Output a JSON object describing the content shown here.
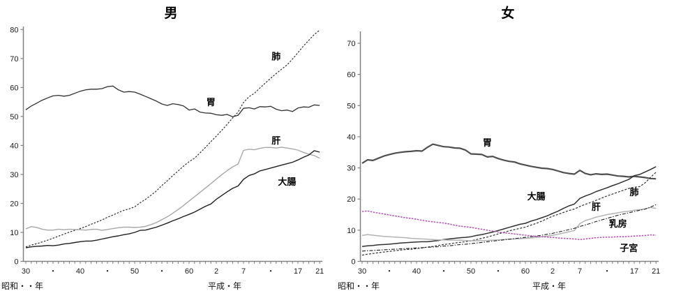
{
  "figure": {
    "background": "#ffffff",
    "description_visible_text_only": true
  },
  "chart_data": [
    {
      "type": "line",
      "title": "男",
      "ylim": [
        0,
        80
      ],
      "yticks": [
        0,
        10,
        20,
        30,
        40,
        50,
        60,
        70,
        80
      ],
      "grid": false,
      "legend": "inline-labels",
      "x": {
        "start_year": 1955,
        "end_year": 2009,
        "step": 1,
        "tick_labels": [
          {
            "label": "30",
            "year": 1955
          },
          {
            "label": "・",
            "year": 1960
          },
          {
            "label": "40",
            "year": 1965
          },
          {
            "label": "・",
            "year": 1970
          },
          {
            "label": "50",
            "year": 1975
          },
          {
            "label": "・",
            "year": 1980
          },
          {
            "label": "60",
            "year": 1985
          },
          {
            "label": "2",
            "year": 1990
          },
          {
            "label": "7",
            "year": 1995
          },
          {
            "label": "・",
            "year": 2000
          },
          {
            "label": "17",
            "year": 2005
          },
          {
            "label": "21",
            "year": 2009
          }
        ],
        "era_labels": [
          {
            "text": "昭和・・年",
            "position": "left"
          },
          {
            "text": "平成・年",
            "position": "center-right"
          }
        ]
      },
      "series": [
        {
          "name": "胃",
          "key": "stomach",
          "color": "#303030",
          "width": 1.3,
          "dash": "",
          "label_anchor": {
            "year": 1989,
            "value": 54.8
          },
          "values": [
            52.3,
            53.6,
            54.6,
            55.6,
            56.4,
            57.1,
            57.3,
            57.0,
            57.3,
            58.0,
            58.7,
            59.2,
            59.4,
            59.4,
            59.6,
            60.3,
            60.5,
            59.2,
            58.4,
            58.6,
            58.4,
            57.7,
            56.9,
            56.1,
            55.3,
            54.3,
            53.8,
            54.4,
            54.1,
            53.6,
            52.2,
            52.6,
            51.5,
            51.2,
            51.1,
            50.6,
            50.4,
            50.7,
            49.9,
            50.4,
            52.8,
            53.0,
            52.6,
            53.4,
            53.3,
            53.5,
            52.5,
            52.0,
            52.2,
            51.7,
            52.9,
            53.3,
            53.2,
            54.0,
            53.8
          ]
        },
        {
          "name": "肺",
          "key": "lung",
          "color": "#303030",
          "width": 1.2,
          "dash": "2.5,2",
          "label_anchor": {
            "year": 2001,
            "value": 70.5
          },
          "values": [
            5.0,
            5.6,
            6.1,
            6.7,
            7.3,
            8.0,
            8.7,
            9.4,
            10.1,
            10.7,
            11.3,
            12.0,
            12.8,
            13.5,
            14.3,
            15.2,
            16.0,
            16.8,
            17.6,
            18.1,
            18.8,
            20.2,
            21.4,
            22.8,
            24.3,
            26.2,
            27.8,
            29.6,
            31.2,
            32.9,
            34.4,
            35.6,
            37.4,
            39.3,
            41.3,
            43.2,
            45.2,
            47.3,
            49.5,
            51.5,
            54.8,
            56.8,
            58.0,
            59.8,
            61.5,
            63.2,
            64.8,
            66.3,
            67.8,
            69.8,
            72.0,
            74.3,
            76.3,
            78.3,
            79.8
          ]
        },
        {
          "name": "肝",
          "key": "liver",
          "color": "#a8a8a8",
          "width": 1.4,
          "dash": "",
          "label_anchor": {
            "year": 2001,
            "value": 41.6
          },
          "values": [
            11.2,
            12.0,
            11.7,
            11.1,
            10.8,
            10.8,
            11.1,
            10.9,
            11.1,
            11.0,
            10.9,
            10.8,
            11.0,
            11.1,
            10.7,
            11.0,
            11.3,
            11.6,
            11.8,
            11.8,
            11.7,
            11.8,
            12.1,
            12.7,
            13.4,
            14.4,
            15.4,
            16.6,
            17.9,
            19.3,
            20.8,
            22.3,
            23.8,
            25.3,
            26.8,
            28.4,
            29.9,
            31.3,
            32.6,
            33.6,
            38.3,
            38.7,
            38.5,
            39.0,
            39.3,
            39.3,
            39.1,
            39.4,
            39.1,
            38.8,
            38.4,
            37.6,
            37.0,
            36.5,
            35.6
          ]
        },
        {
          "name": "大腸",
          "key": "colon",
          "color": "#1f1f1f",
          "width": 1.4,
          "dash": "",
          "label_anchor": {
            "year": 2003,
            "value": 27.3
          },
          "values": [
            4.7,
            5.0,
            5.2,
            5.3,
            5.5,
            5.4,
            5.6,
            6.0,
            6.2,
            6.5,
            6.8,
            7.0,
            7.0,
            7.3,
            7.7,
            8.1,
            8.5,
            8.8,
            9.2,
            9.5,
            10.0,
            10.7,
            10.8,
            11.3,
            11.8,
            12.5,
            13.2,
            14.0,
            14.7,
            15.5,
            16.2,
            17.0,
            18.0,
            19.0,
            19.8,
            21.4,
            22.7,
            24.0,
            25.2,
            26.0,
            28.3,
            29.6,
            30.2,
            31.2,
            31.7,
            32.2,
            32.7,
            33.2,
            33.7,
            34.2,
            35.0,
            35.9,
            36.7,
            38.2,
            37.7
          ]
        }
      ]
    },
    {
      "type": "line",
      "title": "女",
      "ylim": [
        0,
        70
      ],
      "yticks": [
        0,
        10,
        20,
        30,
        40,
        50,
        60,
        70
      ],
      "grid": false,
      "legend": "inline-labels",
      "x": {
        "start_year": 1955,
        "end_year": 2009,
        "step": 1,
        "tick_labels": [
          {
            "label": "30",
            "year": 1955
          },
          {
            "label": "・",
            "year": 1960
          },
          {
            "label": "40",
            "year": 1965
          },
          {
            "label": "・",
            "year": 1970
          },
          {
            "label": "50",
            "year": 1975
          },
          {
            "label": "・",
            "year": 1980
          },
          {
            "label": "60",
            "year": 1985
          },
          {
            "label": "2",
            "year": 1990
          },
          {
            "label": "7",
            "year": 1995
          },
          {
            "label": "・",
            "year": 2000
          },
          {
            "label": "17",
            "year": 2005
          },
          {
            "label": "21",
            "year": 2009
          }
        ],
        "era_labels": [
          {
            "text": "昭和・・年",
            "position": "left"
          },
          {
            "text": "平成・年",
            "position": "center-right"
          }
        ]
      },
      "series": [
        {
          "name": "胃",
          "key": "stomach",
          "color": "#4f4f4f",
          "width": 2.2,
          "dash": "",
          "label_anchor": {
            "year": 1978,
            "value": 38.0
          },
          "values": [
            31.5,
            32.6,
            32.4,
            33.1,
            33.8,
            34.3,
            34.7,
            35.0,
            35.2,
            35.3,
            35.5,
            35.4,
            36.6,
            37.6,
            37.2,
            36.8,
            36.7,
            36.4,
            36.3,
            35.7,
            34.5,
            34.4,
            34.3,
            33.5,
            33.7,
            33.0,
            32.5,
            32.1,
            31.9,
            31.3,
            30.9,
            30.5,
            30.2,
            29.9,
            29.8,
            29.5,
            29.0,
            28.5,
            28.2,
            28.0,
            29.2,
            28.2,
            27.8,
            28.1,
            27.9,
            28.0,
            27.7,
            27.4,
            27.3,
            27.1,
            27.3,
            27.1,
            26.9,
            26.6,
            26.5
          ]
        },
        {
          "name": "大腸",
          "key": "colon",
          "color": "#303030",
          "width": 1.5,
          "dash": "",
          "label_anchor": {
            "year": 1987,
            "value": 20.7
          },
          "values": [
            4.8,
            5.0,
            5.1,
            5.3,
            5.4,
            5.5,
            5.7,
            5.9,
            6.0,
            6.1,
            6.2,
            6.3,
            6.3,
            6.5,
            6.7,
            7.0,
            7.2,
            7.4,
            7.6,
            7.7,
            7.9,
            8.3,
            8.6,
            9.0,
            9.4,
            9.9,
            10.4,
            10.9,
            11.4,
            11.9,
            12.2,
            12.9,
            13.4,
            14.0,
            14.6,
            15.4,
            16.1,
            17.0,
            17.8,
            18.4,
            20.2,
            21.0,
            21.6,
            22.4,
            23.0,
            23.6,
            24.3,
            24.9,
            25.6,
            26.3,
            27.5,
            27.9,
            28.7,
            29.5,
            30.4
          ]
        },
        {
          "name": "肺",
          "key": "lung",
          "color": "#303030",
          "width": 1.2,
          "dash": "3,2",
          "label_anchor": {
            "year": 2005,
            "value": 22.1
          },
          "values": [
            2.0,
            2.3,
            2.5,
            2.8,
            3.0,
            3.2,
            3.4,
            3.6,
            3.8,
            3.9,
            4.1,
            4.3,
            4.6,
            4.8,
            5.1,
            5.4,
            5.6,
            5.9,
            6.1,
            6.3,
            6.6,
            7.0,
            7.4,
            7.8,
            8.3,
            8.8,
            9.3,
            9.8,
            10.2,
            10.6,
            11.0,
            11.6,
            12.2,
            12.9,
            13.7,
            14.5,
            15.1,
            15.7,
            16.3,
            16.8,
            17.6,
            18.3,
            18.9,
            19.6,
            20.3,
            21.0,
            21.6,
            22.2,
            22.8,
            23.4,
            23.8,
            24.0,
            25.2,
            27.0,
            28.6
          ]
        },
        {
          "name": "肝",
          "key": "liver",
          "color": "#b3b3b3",
          "width": 1.5,
          "dash": "",
          "label_anchor": {
            "year": 1998,
            "value": 17.4
          },
          "values": [
            8.3,
            8.6,
            8.4,
            8.2,
            8.0,
            7.9,
            7.8,
            7.7,
            7.6,
            7.4,
            7.3,
            7.2,
            7.1,
            7.0,
            6.9,
            6.9,
            6.8,
            6.8,
            6.8,
            6.7,
            6.6,
            6.6,
            6.7,
            6.7,
            6.8,
            6.9,
            7.0,
            7.1,
            7.2,
            7.3,
            7.4,
            7.5,
            7.7,
            7.9,
            8.1,
            8.4,
            8.7,
            9.1,
            9.5,
            9.9,
            12.1,
            13.1,
            13.6,
            14.2,
            14.6,
            15.0,
            15.3,
            15.6,
            15.9,
            16.1,
            16.4,
            16.6,
            16.8,
            17.3,
            17.0
          ]
        },
        {
          "name": "乳房",
          "key": "breast",
          "color": "#1f1f1f",
          "width": 1.1,
          "dash": "5,2,1.5,2",
          "label_anchor": {
            "year": 2002,
            "value": 12.0
          },
          "values": [
            3.3,
            3.4,
            3.5,
            3.6,
            3.7,
            3.8,
            3.9,
            4.0,
            4.1,
            4.2,
            4.3,
            4.4,
            4.5,
            4.6,
            4.7,
            4.9,
            5.0,
            5.2,
            5.4,
            5.5,
            5.7,
            5.9,
            6.1,
            6.3,
            6.5,
            6.7,
            6.9,
            7.1,
            7.3,
            7.5,
            7.7,
            7.9,
            8.1,
            8.4,
            8.7,
            9.0,
            9.4,
            9.8,
            10.2,
            10.6,
            11.2,
            11.7,
            12.2,
            12.8,
            13.3,
            13.8,
            14.3,
            14.8,
            15.2,
            15.6,
            16.0,
            16.4,
            16.8,
            17.4,
            18.2
          ]
        },
        {
          "name": "子宮",
          "key": "uterus",
          "color": "#b352b3",
          "width": 1.5,
          "dash": "2.5,1.5",
          "label_anchor": {
            "year": 2004,
            "value": 4.1
          },
          "values": [
            16.0,
            16.2,
            15.8,
            15.5,
            15.2,
            14.9,
            14.6,
            14.3,
            14.0,
            13.8,
            13.5,
            13.2,
            12.9,
            12.7,
            12.5,
            12.3,
            12.0,
            11.6,
            11.3,
            11.1,
            10.9,
            10.6,
            10.3,
            10.0,
            9.7,
            9.4,
            9.2,
            9.0,
            8.8,
            8.6,
            8.4,
            8.2,
            8.0,
            7.9,
            7.8,
            7.7,
            7.5,
            7.4,
            7.3,
            7.2,
            7.0,
            7.2,
            7.4,
            7.6,
            7.7,
            7.8,
            7.8,
            7.9,
            7.9,
            8.0,
            8.1,
            8.2,
            8.3,
            8.5,
            8.4
          ]
        }
      ]
    }
  ]
}
